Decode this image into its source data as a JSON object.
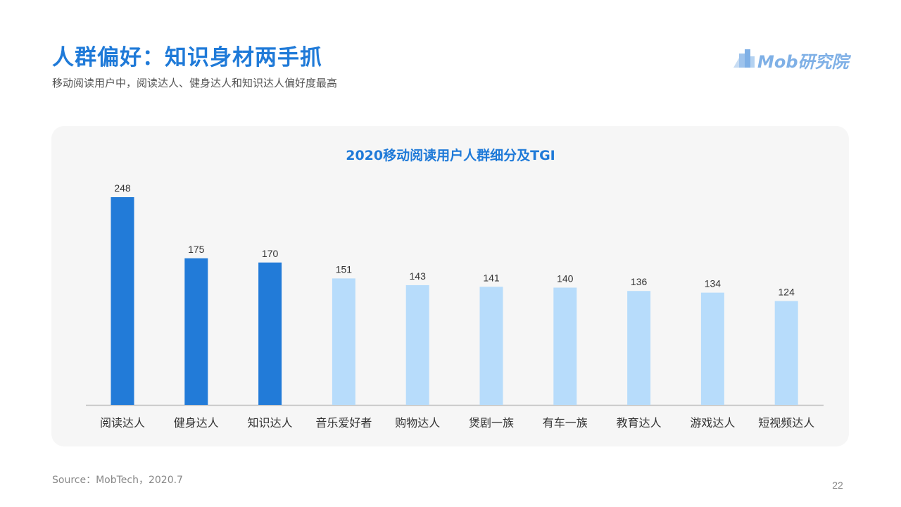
{
  "header": {
    "title": "人群偏好：知识身材两手抓",
    "subtitle": "移动阅读用户中，阅读达人、健身达人和知识达人偏好度最高"
  },
  "logo": {
    "text": "Mob研究院",
    "icon": "building-bars-icon"
  },
  "chart_data": {
    "type": "bar",
    "title": "2020移动阅读用户人群细分及TGI",
    "xlabel": "",
    "ylabel": "",
    "ylim": [
      0,
      250
    ],
    "grid": false,
    "categories": [
      "阅读达人",
      "健身达人",
      "知识达人",
      "音乐爱好者",
      "购物达人",
      "煲剧一族",
      "有车一族",
      "教育达人",
      "游戏达人",
      "短视频达人"
    ],
    "values": [
      248,
      175,
      170,
      151,
      143,
      141,
      140,
      136,
      134,
      124
    ],
    "highlighted": [
      true,
      true,
      true,
      false,
      false,
      false,
      false,
      false,
      false,
      false
    ],
    "colors": {
      "highlight": "#227bd8",
      "normal": "#b7dcfb",
      "axis": "#bfbfbf",
      "label": "#333333"
    }
  },
  "footer": {
    "source": "Source：MobTech，2020.7",
    "page_number": "22"
  }
}
